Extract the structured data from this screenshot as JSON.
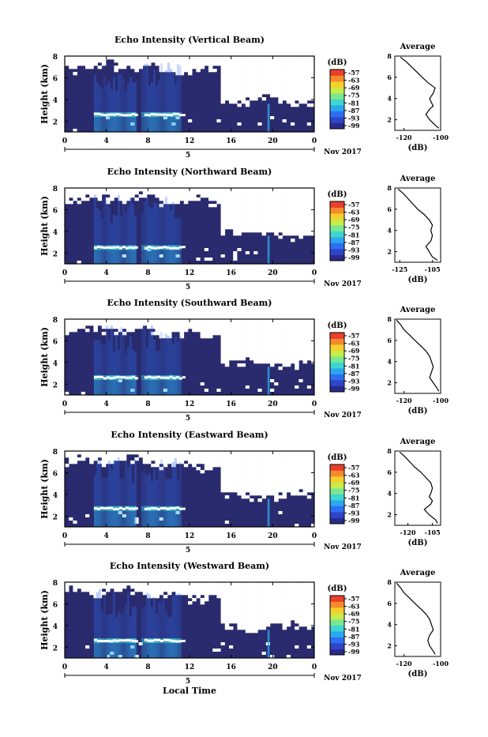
{
  "figure": {
    "bottom_xlabel": "Local Time",
    "date_label": "Nov 2017",
    "day_label": "5",
    "x_ticks": [
      "0",
      "4",
      "8",
      "12",
      "16",
      "20",
      "0"
    ],
    "x_tick_values": [
      0,
      4,
      8,
      12,
      16,
      20,
      24
    ],
    "colorbar_unit": "(dB)",
    "colorbar_ticks": [
      "-57",
      "-63",
      "-69",
      "-75",
      "-81",
      "-87",
      "-93",
      "-99"
    ],
    "colorbar_colors": [
      "#2a2a8a",
      "#2e45c8",
      "#2d6ff0",
      "#2ba7ee",
      "#3fd5d0",
      "#7ae890",
      "#c8ec4a",
      "#f5d02c",
      "#f58a2c",
      "#e8402a"
    ]
  },
  "chart_data": [
    {
      "type": "heatmap",
      "title": "Echo Intensity (Vertical Beam)",
      "ylabel": "Height (km)",
      "xlim": [
        0,
        24
      ],
      "ylim": [
        1,
        8
      ],
      "y_ticks": [
        "2",
        "4",
        "6",
        "8"
      ],
      "y_tick_values": [
        2,
        4,
        6,
        8
      ],
      "bright_layer_km": 2.6,
      "profile": {
        "title": "Average",
        "xlabel": "(dB)",
        "xlim": [
          -125,
          -100
        ],
        "x_ticks": [
          "-120",
          "-100"
        ],
        "x_tick_values": [
          -120,
          -100
        ],
        "ylim": [
          1,
          8
        ],
        "y_ticks": [
          "2",
          "4",
          "6",
          "8"
        ],
        "y_tick_values": [
          2,
          4,
          6,
          8
        ],
        "height": [
          1.2,
          1.5,
          2.0,
          2.5,
          3.0,
          3.3,
          3.6,
          4.0,
          4.5,
          5.0,
          5.5,
          6.0,
          6.5,
          7.0,
          7.5,
          7.9
        ],
        "db": [
          -101,
          -103,
          -106,
          -108,
          -106,
          -104,
          -105,
          -106,
          -104,
          -103,
          -107,
          -110,
          -113,
          -116,
          -119,
          -122
        ]
      }
    },
    {
      "type": "heatmap",
      "title": "Echo Intensity (Northward Beam)",
      "ylabel": "Height (km)",
      "xlim": [
        0,
        24
      ],
      "ylim": [
        1,
        8
      ],
      "y_ticks": [
        "2",
        "4",
        "6",
        "8"
      ],
      "y_tick_values": [
        2,
        4,
        6,
        8
      ],
      "bright_layer_km": 2.5,
      "profile": {
        "title": "Average",
        "xlabel": "(dB)",
        "xlim": [
          -128,
          -100
        ],
        "x_ticks": [
          "-125",
          "-105"
        ],
        "x_tick_values": [
          -125,
          -105
        ],
        "ylim": [
          1,
          8
        ],
        "y_ticks": [
          "2",
          "4",
          "6",
          "8"
        ],
        "y_tick_values": [
          2,
          4,
          6,
          8
        ],
        "height": [
          1.2,
          1.5,
          2.0,
          2.5,
          3.0,
          3.5,
          4.0,
          4.5,
          5.0,
          5.5,
          6.0,
          6.5,
          7.0,
          7.5,
          7.9
        ],
        "db": [
          -102,
          -105,
          -107,
          -109,
          -106,
          -105,
          -106,
          -105,
          -107,
          -110,
          -114,
          -117,
          -120,
          -123,
          -126
        ]
      }
    },
    {
      "type": "heatmap",
      "title": "Echo Intensity (Southward Beam)",
      "ylabel": "Height (km)",
      "xlim": [
        0,
        24
      ],
      "ylim": [
        1,
        8
      ],
      "y_ticks": [
        "2",
        "4",
        "6",
        "8"
      ],
      "y_tick_values": [
        2,
        4,
        6,
        8
      ],
      "bright_layer_km": 2.6,
      "profile": {
        "title": "Average",
        "xlabel": "(dB)",
        "xlim": [
          -125,
          -100
        ],
        "x_ticks": [
          "-120",
          "-100"
        ],
        "x_tick_values": [
          -120,
          -100
        ],
        "ylim": [
          1,
          8
        ],
        "y_ticks": [
          "2",
          "4",
          "6",
          "8"
        ],
        "y_tick_values": [
          2,
          4,
          6,
          8
        ],
        "height": [
          1.2,
          1.5,
          2.0,
          2.5,
          3.0,
          3.5,
          4.0,
          4.5,
          5.0,
          5.5,
          6.0,
          6.5,
          7.0,
          7.5,
          7.9
        ],
        "db": [
          -101,
          -102,
          -104,
          -106,
          -105,
          -104,
          -105,
          -106,
          -108,
          -111,
          -114,
          -117,
          -120,
          -122,
          -124
        ]
      }
    },
    {
      "type": "heatmap",
      "title": "Echo Intensity (Eastward Beam)",
      "ylabel": "Height (km)",
      "xlim": [
        0,
        24
      ],
      "ylim": [
        1,
        8
      ],
      "y_ticks": [
        "2",
        "4",
        "6",
        "8"
      ],
      "y_tick_values": [
        2,
        4,
        6,
        8
      ],
      "bright_layer_km": 2.7,
      "profile": {
        "title": "Average",
        "xlabel": "(dB)",
        "xlim": [
          -128,
          -100
        ],
        "x_ticks": [
          "-120",
          "-105"
        ],
        "x_tick_values": [
          -120,
          -105
        ],
        "ylim": [
          1,
          8
        ],
        "y_ticks": [
          "2",
          "4",
          "6",
          "8"
        ],
        "y_tick_values": [
          2,
          4,
          6,
          8
        ],
        "height": [
          1.2,
          1.5,
          2.0,
          2.5,
          3.0,
          3.3,
          3.7,
          4.0,
          4.5,
          5.0,
          5.5,
          6.0,
          6.5,
          7.0,
          7.5,
          7.9
        ],
        "db": [
          -102,
          -103,
          -107,
          -110,
          -106,
          -105,
          -107,
          -106,
          -105,
          -106,
          -109,
          -112,
          -116,
          -119,
          -122,
          -125
        ]
      }
    },
    {
      "type": "heatmap",
      "title": "Echo Intensity (Westward Beam)",
      "ylabel": "Height (km)",
      "xlim": [
        0,
        24
      ],
      "ylim": [
        1,
        8
      ],
      "y_ticks": [
        "2",
        "4",
        "6",
        "8"
      ],
      "y_tick_values": [
        2,
        4,
        6,
        8
      ],
      "bright_layer_km": 2.6,
      "profile": {
        "title": "Average",
        "xlabel": "(dB)",
        "xlim": [
          -125,
          -100
        ],
        "x_ticks": [
          "-120",
          "-100"
        ],
        "x_tick_values": [
          -120,
          -100
        ],
        "ylim": [
          1,
          8
        ],
        "y_ticks": [
          "2",
          "4",
          "6",
          "8"
        ],
        "y_tick_values": [
          2,
          4,
          6,
          8
        ],
        "height": [
          1.2,
          1.5,
          2.0,
          2.5,
          3.0,
          3.5,
          4.0,
          4.5,
          5.0,
          5.5,
          6.0,
          6.5,
          7.0,
          7.5,
          7.9
        ],
        "db": [
          -103,
          -104,
          -106,
          -107,
          -106,
          -104,
          -105,
          -106,
          -108,
          -111,
          -114,
          -117,
          -120,
          -122,
          -124
        ]
      }
    }
  ]
}
